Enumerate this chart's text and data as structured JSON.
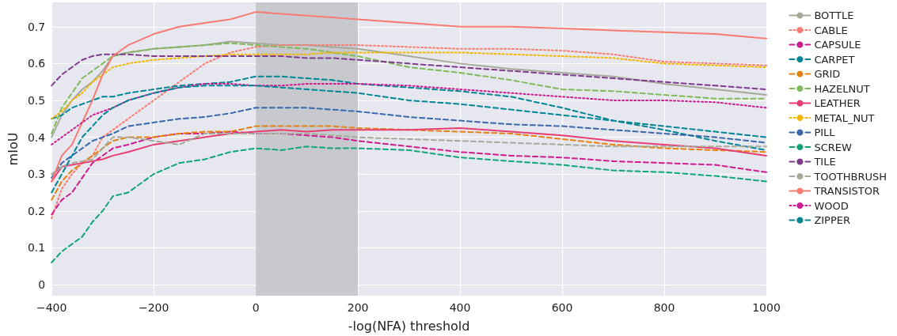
{
  "chart_data": {
    "type": "line",
    "xlabel": "-log(NFA) threshold",
    "ylabel": "mIoU",
    "x": [
      -400,
      -380,
      -360,
      -340,
      -320,
      -300,
      -280,
      -250,
      -200,
      -150,
      -100,
      -50,
      0,
      50,
      100,
      150,
      200,
      300,
      400,
      500,
      600,
      700,
      800,
      900,
      1000
    ],
    "xlim": [
      -400,
      1000
    ],
    "xticks": [
      -400,
      -200,
      0,
      200,
      400,
      600,
      800,
      1000
    ],
    "ylim": [
      -0.03,
      0.766
    ],
    "yticks": [
      0,
      0.1,
      0.2,
      0.3,
      0.4,
      0.5,
      0.6,
      0.7
    ],
    "grid": true,
    "legend": "right",
    "marker": "none",
    "bands": [
      {
        "axis": "x",
        "from": 0,
        "to": 200,
        "color": "#c8c8cf"
      }
    ],
    "series": [
      {
        "name": "BOTTLE",
        "color": "#a5aa99",
        "line_style": "solid",
        "values": [
          0.4,
          0.46,
          0.5,
          0.53,
          0.55,
          0.58,
          0.62,
          0.63,
          0.64,
          0.645,
          0.65,
          0.66,
          0.655,
          0.65,
          0.65,
          0.645,
          0.64,
          0.62,
          0.6,
          0.585,
          0.575,
          0.565,
          0.545,
          0.53,
          0.515
        ]
      },
      {
        "name": "CABLE",
        "color": "#f97b72",
        "line_style": "dotted",
        "values": [
          0.18,
          0.26,
          0.3,
          0.33,
          0.35,
          0.4,
          0.42,
          0.45,
          0.5,
          0.55,
          0.6,
          0.63,
          0.645,
          0.65,
          0.65,
          0.65,
          0.65,
          0.645,
          0.64,
          0.64,
          0.635,
          0.625,
          0.605,
          0.6,
          0.595
        ]
      },
      {
        "name": "CAPSULE",
        "color": "#cf1c90",
        "line_style": "dashed",
        "values": [
          0.19,
          0.23,
          0.25,
          0.29,
          0.33,
          0.35,
          0.37,
          0.38,
          0.4,
          0.41,
          0.41,
          0.415,
          0.41,
          0.41,
          0.405,
          0.4,
          0.39,
          0.375,
          0.36,
          0.35,
          0.345,
          0.335,
          0.33,
          0.325,
          0.305
        ]
      },
      {
        "name": "CARPET",
        "color": "#008695",
        "line_style": "dashed",
        "values": [
          0.45,
          0.46,
          0.48,
          0.49,
          0.5,
          0.51,
          0.51,
          0.52,
          0.53,
          0.54,
          0.545,
          0.55,
          0.565,
          0.565,
          0.56,
          0.555,
          0.545,
          0.535,
          0.525,
          0.51,
          0.48,
          0.445,
          0.42,
          0.39,
          0.365
        ]
      },
      {
        "name": "GRID",
        "color": "#e68310",
        "line_style": "dashed",
        "values": [
          0.23,
          0.28,
          0.31,
          0.33,
          0.35,
          0.37,
          0.39,
          0.4,
          0.4,
          0.41,
          0.415,
          0.415,
          0.43,
          0.43,
          0.43,
          0.43,
          0.425,
          0.42,
          0.415,
          0.41,
          0.395,
          0.38,
          0.37,
          0.365,
          0.36
        ]
      },
      {
        "name": "HAZELNUT",
        "color": "#80ba5a",
        "line_style": "dashed",
        "values": [
          0.41,
          0.48,
          0.52,
          0.56,
          0.58,
          0.6,
          0.62,
          0.63,
          0.64,
          0.645,
          0.65,
          0.655,
          0.65,
          0.645,
          0.64,
          0.63,
          0.62,
          0.59,
          0.575,
          0.555,
          0.53,
          0.525,
          0.515,
          0.505,
          0.505
        ]
      },
      {
        "name": "LEATHER",
        "color": "#e73f74",
        "line_style": "solid",
        "values": [
          0.28,
          0.32,
          0.325,
          0.33,
          0.335,
          0.34,
          0.35,
          0.36,
          0.38,
          0.39,
          0.4,
          0.41,
          0.415,
          0.42,
          0.415,
          0.42,
          0.42,
          0.42,
          0.425,
          0.415,
          0.405,
          0.39,
          0.38,
          0.37,
          0.35
        ]
      },
      {
        "name": "METAL_NUT",
        "color": "#f2b701",
        "line_style": "dotted",
        "values": [
          0.45,
          0.47,
          0.5,
          0.52,
          0.55,
          0.57,
          0.59,
          0.6,
          0.61,
          0.615,
          0.62,
          0.625,
          0.625,
          0.625,
          0.625,
          0.63,
          0.63,
          0.63,
          0.63,
          0.625,
          0.62,
          0.615,
          0.6,
          0.595,
          0.59
        ]
      },
      {
        "name": "PILL",
        "color": "#3969ac",
        "line_style": "dashed",
        "values": [
          0.29,
          0.33,
          0.35,
          0.37,
          0.39,
          0.4,
          0.41,
          0.43,
          0.44,
          0.45,
          0.455,
          0.465,
          0.48,
          0.48,
          0.48,
          0.475,
          0.47,
          0.455,
          0.445,
          0.435,
          0.43,
          0.42,
          0.41,
          0.4,
          0.385
        ]
      },
      {
        "name": "SCREW",
        "color": "#11a579",
        "line_style": "dashed",
        "values": [
          0.06,
          0.09,
          0.11,
          0.13,
          0.17,
          0.2,
          0.24,
          0.25,
          0.3,
          0.33,
          0.34,
          0.36,
          0.37,
          0.365,
          0.375,
          0.37,
          0.37,
          0.365,
          0.345,
          0.335,
          0.325,
          0.31,
          0.305,
          0.295,
          0.28
        ]
      },
      {
        "name": "TILE",
        "color": "#7f3c8d",
        "line_style": "dashed",
        "values": [
          0.54,
          0.57,
          0.59,
          0.61,
          0.62,
          0.625,
          0.625,
          0.625,
          0.62,
          0.62,
          0.62,
          0.62,
          0.62,
          0.62,
          0.615,
          0.615,
          0.61,
          0.6,
          0.59,
          0.58,
          0.57,
          0.56,
          0.55,
          0.54,
          0.53
        ]
      },
      {
        "name": "TOOTHBRUSH",
        "color": "#a5aa99",
        "line_style": "dashed",
        "values": [
          0.3,
          0.32,
          0.33,
          0.335,
          0.34,
          0.37,
          0.4,
          0.4,
          0.39,
          0.38,
          0.41,
          0.41,
          0.41,
          0.41,
          0.41,
          0.405,
          0.4,
          0.395,
          0.39,
          0.385,
          0.38,
          0.375,
          0.375,
          0.375,
          0.375
        ]
      },
      {
        "name": "TRANSISTOR",
        "color": "#f97b72",
        "line_style": "solid",
        "values": [
          0.28,
          0.35,
          0.38,
          0.44,
          0.5,
          0.57,
          0.62,
          0.65,
          0.68,
          0.7,
          0.71,
          0.72,
          0.74,
          0.735,
          0.73,
          0.725,
          0.72,
          0.71,
          0.7,
          0.7,
          0.695,
          0.69,
          0.685,
          0.68,
          0.668
        ]
      },
      {
        "name": "WOOD",
        "color": "#cf1c90",
        "line_style": "dotted",
        "values": [
          0.38,
          0.4,
          0.42,
          0.44,
          0.46,
          0.47,
          0.48,
          0.5,
          0.52,
          0.535,
          0.545,
          0.545,
          0.54,
          0.54,
          0.545,
          0.545,
          0.545,
          0.54,
          0.53,
          0.52,
          0.51,
          0.5,
          0.5,
          0.495,
          0.48
        ]
      },
      {
        "name": "ZIPPER",
        "color": "#008695",
        "line_style": "dashed",
        "values": [
          0.25,
          0.3,
          0.35,
          0.4,
          0.43,
          0.46,
          0.48,
          0.5,
          0.52,
          0.535,
          0.54,
          0.54,
          0.54,
          0.535,
          0.53,
          0.525,
          0.52,
          0.5,
          0.49,
          0.475,
          0.46,
          0.445,
          0.43,
          0.415,
          0.4
        ]
      }
    ]
  }
}
